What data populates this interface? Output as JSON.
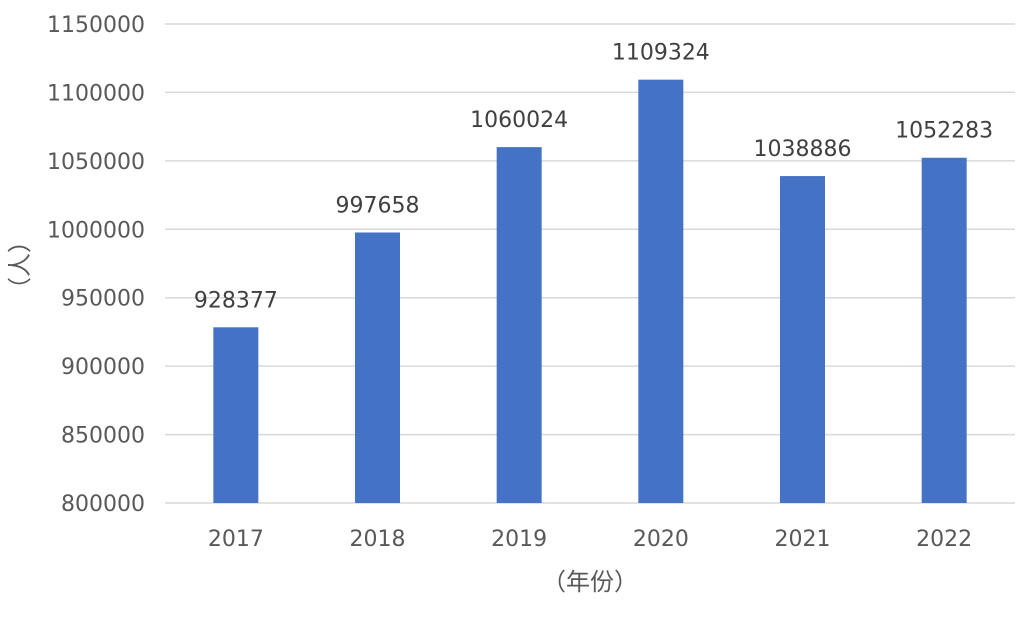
{
  "chart_data": {
    "type": "bar",
    "title": "",
    "xlabel": "（年份）",
    "ylabel": "（人）",
    "categories": [
      "2017",
      "2018",
      "2019",
      "2020",
      "2021",
      "2022"
    ],
    "values": [
      928377,
      997658,
      1060024,
      1109324,
      1038886,
      1052283
    ],
    "data_labels": [
      "928377",
      "997658",
      "1060024",
      "1109324",
      "1038886",
      "1052283"
    ],
    "ylim": [
      800000,
      1150000
    ],
    "yticks": [
      800000,
      850000,
      900000,
      950000,
      1000000,
      1050000,
      1100000,
      1150000
    ],
    "ytick_labels": [
      "800000",
      "850000",
      "900000",
      "950000",
      "1000000",
      "1050000",
      "1100000",
      "1150000"
    ],
    "grid": true,
    "legend": "none",
    "colors": {
      "bar": "#4472C4",
      "grid": "#D9D9D9"
    }
  }
}
